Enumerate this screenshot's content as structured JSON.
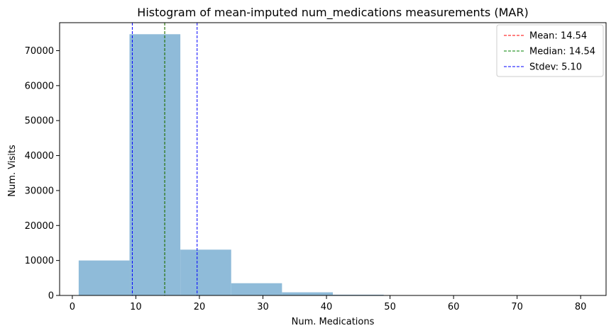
{
  "chart_data": {
    "type": "bar",
    "title": "Histogram of mean-imputed num_medications measurements (MAR)",
    "xlabel": "Num. Medications",
    "ylabel": "Num. Visits",
    "xlim": [
      -2,
      84
    ],
    "ylim": [
      0,
      78000
    ],
    "xticks": [
      0,
      10,
      20,
      30,
      40,
      50,
      60,
      70,
      80
    ],
    "yticks": [
      0,
      10000,
      20000,
      30000,
      40000,
      50000,
      60000,
      70000
    ],
    "grid": false,
    "legend_position": "top-right",
    "bar_color": "#8fbbd9",
    "bins": [
      {
        "start": 1,
        "end": 9,
        "count": 10000
      },
      {
        "start": 9,
        "end": 17,
        "count": 74700
      },
      {
        "start": 17,
        "end": 25,
        "count": 13100
      },
      {
        "start": 25,
        "end": 33,
        "count": 3500
      },
      {
        "start": 33,
        "end": 41,
        "count": 900
      },
      {
        "start": 41,
        "end": 49,
        "count": 220
      },
      {
        "start": 49,
        "end": 57,
        "count": 90
      },
      {
        "start": 57,
        "end": 65,
        "count": 25
      },
      {
        "start": 65,
        "end": 73,
        "count": 10
      },
      {
        "start": 73,
        "end": 81,
        "count": 5
      }
    ],
    "lines": [
      {
        "label": "Mean: 14.54",
        "x": [
          14.54
        ],
        "color": "#ff0000"
      },
      {
        "label": "Median: 14.54",
        "x": [
          14.54
        ],
        "color": "#008000"
      },
      {
        "label": "Stdev: 5.10",
        "x": [
          9.44,
          19.64
        ],
        "color": "#0000ff"
      }
    ]
  }
}
